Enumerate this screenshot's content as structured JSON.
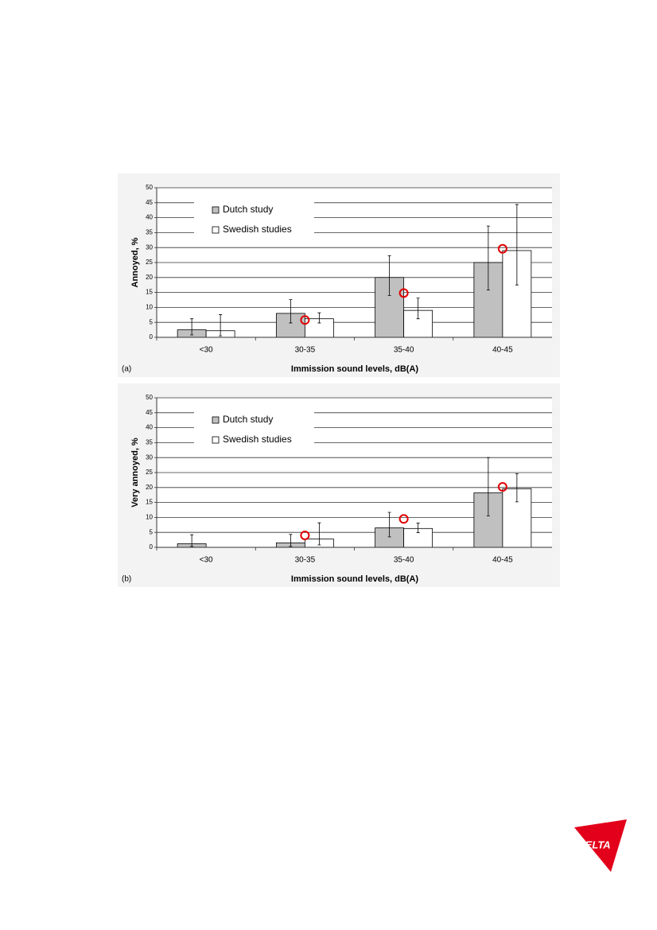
{
  "chart_data": [
    {
      "type": "bar",
      "panel_label": "(a)",
      "x_label": "Immission sound levels, dB(A)",
      "y_label": "Annoyed, %",
      "categories": [
        "<30",
        "30-35",
        "35-40",
        "40-45"
      ],
      "series": [
        {
          "name": "Dutch study",
          "color": "#c0c0c0",
          "values": [
            2.5,
            8,
            20,
            25
          ],
          "lower": [
            0.8,
            4.8,
            14,
            15.8
          ],
          "upper": [
            6.2,
            12.6,
            27.3,
            37.2
          ]
        },
        {
          "name": "Swedish studies",
          "color": "#ffffff",
          "values": [
            2.2,
            6.2,
            9,
            29
          ],
          "lower": [
            0.5,
            4.8,
            6.2,
            17.5
          ],
          "upper": [
            7.6,
            8.2,
            13.1,
            44.4
          ]
        }
      ],
      "markers": {
        "color": "#e00000",
        "values": [
          null,
          5.8,
          14.8,
          29.6
        ]
      },
      "ylim": [
        0,
        50
      ],
      "yticks": [
        0,
        5,
        10,
        15,
        20,
        25,
        30,
        35,
        40,
        45,
        50
      ],
      "grid": true
    },
    {
      "type": "bar",
      "panel_label": "(b)",
      "x_label": "Immission sound levels, dB(A)",
      "y_label": "Very annoyed, %",
      "categories": [
        "<30",
        "30-35",
        "35-40",
        "40-45"
      ],
      "series": [
        {
          "name": "Dutch study",
          "color": "#c0c0c0",
          "values": [
            1.2,
            1.5,
            6.5,
            18.2
          ],
          "lower": [
            0.3,
            0.3,
            3.5,
            10.5
          ],
          "upper": [
            4.2,
            4.3,
            11.7,
            30
          ]
        },
        {
          "name": "Swedish studies",
          "color": "#ffffff",
          "values": [
            null,
            2.8,
            6.3,
            19.6
          ],
          "lower": [
            null,
            0.8,
            4.9,
            15.2
          ],
          "upper": [
            null,
            8.2,
            8.1,
            24.6
          ]
        }
      ],
      "markers": {
        "color": "#e00000",
        "values": [
          null,
          4.0,
          9.5,
          20.2
        ]
      },
      "ylim": [
        0,
        50
      ],
      "yticks": [
        0,
        5,
        10,
        15,
        20,
        25,
        30,
        35,
        40,
        45,
        50
      ],
      "grid": true
    }
  ],
  "logo_text": "DELTA"
}
